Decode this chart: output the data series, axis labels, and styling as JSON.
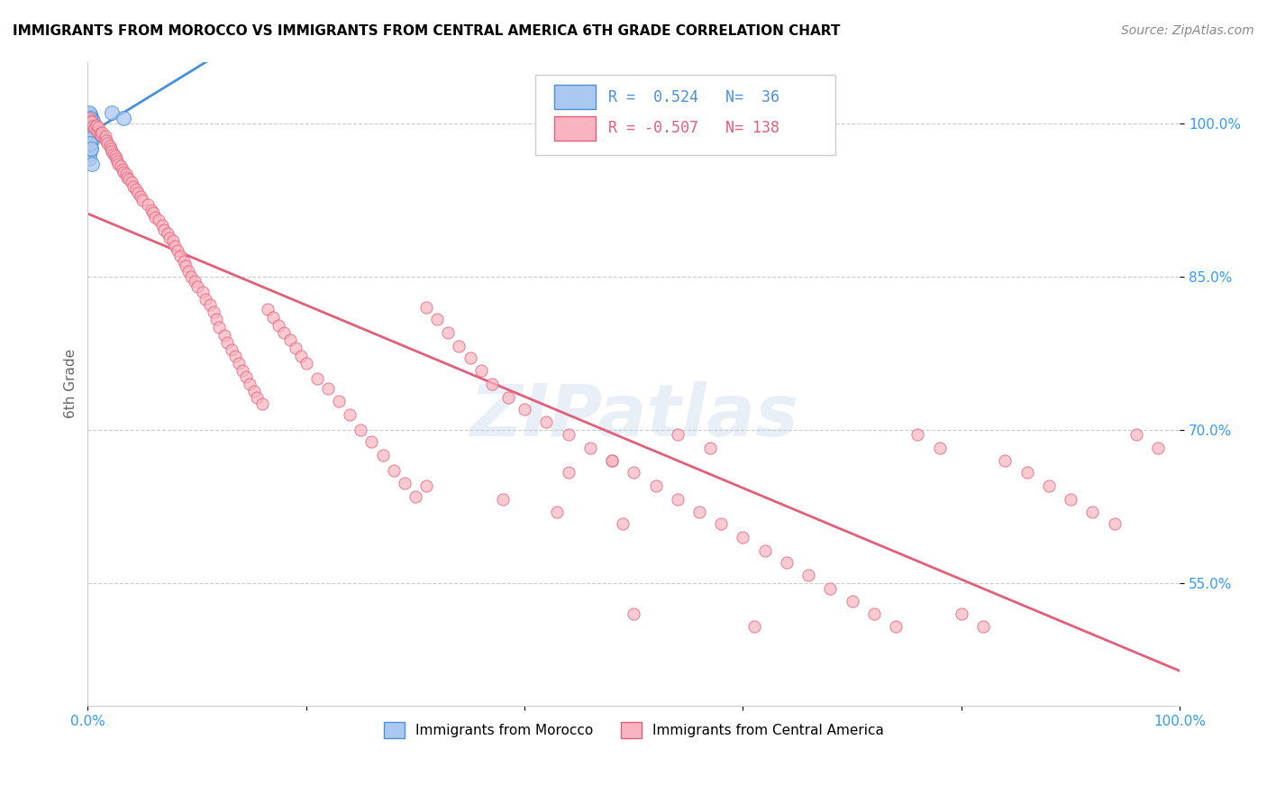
{
  "title": "IMMIGRANTS FROM MOROCCO VS IMMIGRANTS FROM CENTRAL AMERICA 6TH GRADE CORRELATION CHART",
  "source": "Source: ZipAtlas.com",
  "ylabel": "6th Grade",
  "ytick_labels": [
    "100.0%",
    "85.0%",
    "70.0%",
    "55.0%"
  ],
  "ytick_values": [
    1.0,
    0.85,
    0.7,
    0.55
  ],
  "legend_label_blue": "Immigrants from Morocco",
  "legend_label_pink": "Immigrants from Central America",
  "R_blue": 0.524,
  "N_blue": 36,
  "R_pink": -0.507,
  "N_pink": 138,
  "color_blue": "#aac8f0",
  "color_pink": "#f8b4c0",
  "trendline_blue": "#4a90d9",
  "trendline_pink": "#e0607a",
  "watermark": "ZIPatlas",
  "blue_x": [
    0.001,
    0.001,
    0.001,
    0.001,
    0.002,
    0.002,
    0.002,
    0.002,
    0.002,
    0.002,
    0.003,
    0.003,
    0.003,
    0.003,
    0.003,
    0.003,
    0.004,
    0.004,
    0.004,
    0.004,
    0.005,
    0.005,
    0.005,
    0.006,
    0.001,
    0.002,
    0.003,
    0.004,
    0.002,
    0.003,
    0.022,
    0.033,
    0.002,
    0.001,
    0.002,
    0.003
  ],
  "blue_y": [
    1.005,
    0.975,
    0.97,
    0.965,
    1.008,
    1.003,
    0.998,
    0.993,
    0.988,
    0.983,
    1.006,
    1.001,
    0.996,
    0.991,
    0.986,
    0.981,
    1.004,
    0.999,
    0.994,
    0.96,
    1.002,
    0.997,
    0.992,
    0.987,
    1.01,
    1.005,
    1.0,
    0.995,
    0.98,
    0.975,
    1.01,
    1.005,
    0.99,
    0.985,
    0.98,
    0.975
  ],
  "pink_x": [
    0.001,
    0.002,
    0.003,
    0.004,
    0.005,
    0.006,
    0.008,
    0.009,
    0.01,
    0.011,
    0.012,
    0.013,
    0.015,
    0.016,
    0.017,
    0.018,
    0.02,
    0.021,
    0.022,
    0.024,
    0.025,
    0.026,
    0.027,
    0.028,
    0.03,
    0.032,
    0.033,
    0.035,
    0.036,
    0.038,
    0.04,
    0.042,
    0.044,
    0.046,
    0.048,
    0.05,
    0.055,
    0.058,
    0.06,
    0.062,
    0.065,
    0.068,
    0.07,
    0.073,
    0.075,
    0.078,
    0.08,
    0.082,
    0.085,
    0.088,
    0.09,
    0.092,
    0.095,
    0.098,
    0.1,
    0.105,
    0.108,
    0.112,
    0.115,
    0.118,
    0.12,
    0.125,
    0.128,
    0.132,
    0.135,
    0.138,
    0.142,
    0.145,
    0.148,
    0.152,
    0.155,
    0.16,
    0.165,
    0.17,
    0.175,
    0.18,
    0.185,
    0.19,
    0.195,
    0.2,
    0.21,
    0.22,
    0.23,
    0.24,
    0.25,
    0.26,
    0.27,
    0.28,
    0.29,
    0.3,
    0.31,
    0.32,
    0.33,
    0.34,
    0.35,
    0.36,
    0.37,
    0.385,
    0.4,
    0.42,
    0.44,
    0.46,
    0.48,
    0.5,
    0.52,
    0.54,
    0.56,
    0.58,
    0.6,
    0.62,
    0.64,
    0.66,
    0.68,
    0.7,
    0.72,
    0.74,
    0.76,
    0.78,
    0.8,
    0.82,
    0.84,
    0.86,
    0.88,
    0.9,
    0.92,
    0.94,
    0.96,
    0.98,
    0.5,
    0.61,
    0.48,
    0.44,
    0.31,
    0.38,
    0.43,
    0.49,
    0.54,
    0.57
  ],
  "pink_y": [
    1.005,
    1.002,
    0.998,
    1.001,
    0.997,
    0.995,
    0.998,
    0.992,
    0.996,
    0.99,
    0.988,
    0.991,
    0.985,
    0.987,
    0.983,
    0.98,
    0.978,
    0.975,
    0.972,
    0.97,
    0.968,
    0.965,
    0.963,
    0.96,
    0.958,
    0.955,
    0.952,
    0.95,
    0.947,
    0.945,
    0.942,
    0.938,
    0.935,
    0.932,
    0.928,
    0.925,
    0.92,
    0.915,
    0.912,
    0.908,
    0.905,
    0.9,
    0.896,
    0.892,
    0.888,
    0.885,
    0.88,
    0.875,
    0.87,
    0.865,
    0.86,
    0.855,
    0.85,
    0.845,
    0.84,
    0.835,
    0.828,
    0.822,
    0.815,
    0.808,
    0.8,
    0.792,
    0.785,
    0.778,
    0.772,
    0.765,
    0.758,
    0.752,
    0.745,
    0.738,
    0.732,
    0.725,
    0.818,
    0.81,
    0.802,
    0.795,
    0.788,
    0.78,
    0.772,
    0.765,
    0.75,
    0.74,
    0.728,
    0.715,
    0.7,
    0.688,
    0.675,
    0.66,
    0.648,
    0.635,
    0.82,
    0.808,
    0.795,
    0.782,
    0.77,
    0.758,
    0.745,
    0.732,
    0.72,
    0.708,
    0.695,
    0.682,
    0.67,
    0.658,
    0.645,
    0.632,
    0.62,
    0.608,
    0.595,
    0.582,
    0.57,
    0.558,
    0.545,
    0.532,
    0.52,
    0.508,
    0.695,
    0.682,
    0.52,
    0.508,
    0.67,
    0.658,
    0.645,
    0.632,
    0.62,
    0.608,
    0.695,
    0.682,
    0.52,
    0.508,
    0.67,
    0.658,
    0.645,
    0.632,
    0.62,
    0.608,
    0.695,
    0.682
  ]
}
